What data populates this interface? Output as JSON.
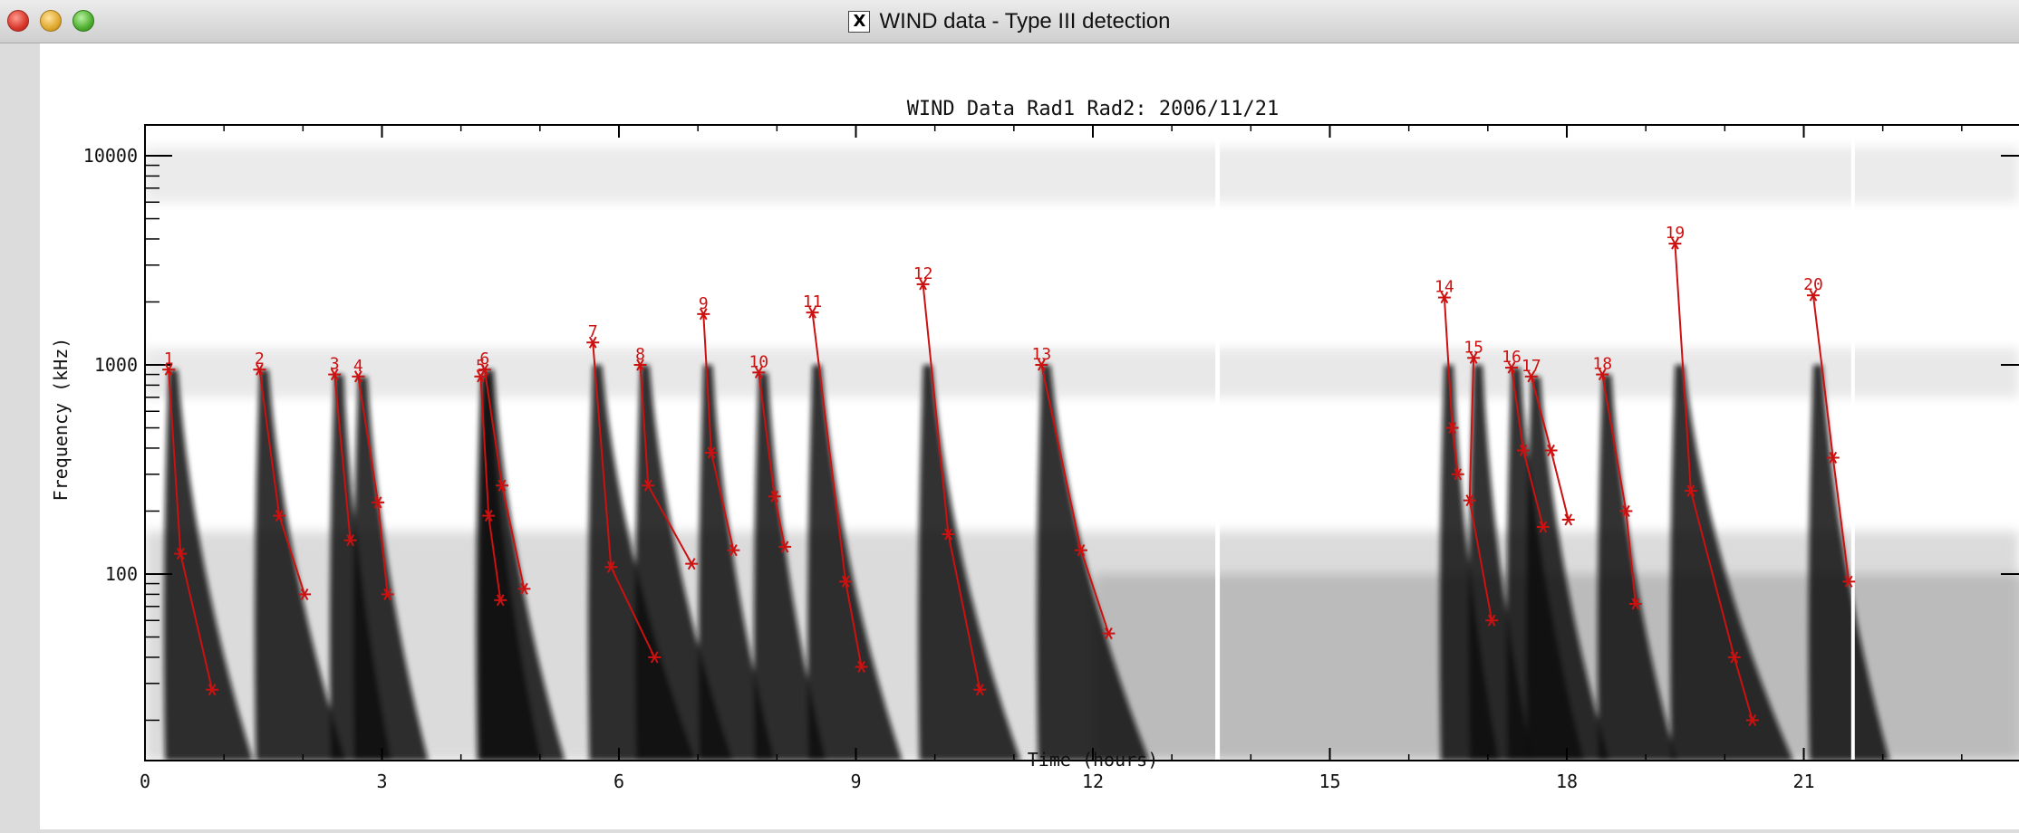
{
  "window": {
    "title": "WIND data - Type III detection",
    "icon": "x11-icon"
  },
  "chart_data": {
    "type": "scatter",
    "title": "WIND Data Rad1 Rad2: 2006/11/21",
    "xlabel": "Time (hours)",
    "ylabel": "Frequency (kHz)",
    "xlim": [
      0,
      24
    ],
    "ylim": [
      20,
      13000
    ],
    "yscale": "log",
    "xticks": [
      "0",
      "3",
      "6",
      "9",
      "12",
      "15",
      "18",
      "21"
    ],
    "yticks": [
      "10000",
      "1000",
      "100"
    ],
    "background": "grayscale dynamic spectrum",
    "marker_color": "#cc1111",
    "series": [
      {
        "label": "1",
        "points": [
          [
            0.3,
            950
          ],
          [
            0.45,
            125
          ],
          [
            0.85,
            28
          ]
        ]
      },
      {
        "label": "2",
        "points": [
          [
            1.45,
            950
          ],
          [
            1.7,
            190
          ],
          [
            2.02,
            80
          ]
        ]
      },
      {
        "label": "3",
        "points": [
          [
            2.4,
            900
          ],
          [
            2.6,
            145
          ]
        ]
      },
      {
        "label": "4",
        "points": [
          [
            2.7,
            880
          ],
          [
            2.95,
            220
          ],
          [
            3.07,
            80
          ]
        ]
      },
      {
        "label": "5",
        "points": [
          [
            4.25,
            880
          ],
          [
            4.35,
            190
          ],
          [
            4.5,
            75
          ]
        ]
      },
      {
        "label": "6",
        "points": [
          [
            4.3,
            950
          ],
          [
            4.52,
            265
          ],
          [
            4.8,
            85
          ]
        ]
      },
      {
        "label": "7",
        "points": [
          [
            5.67,
            1280
          ],
          [
            5.9,
            108
          ],
          [
            6.45,
            40
          ]
        ]
      },
      {
        "label": "8",
        "points": [
          [
            6.27,
            1000
          ],
          [
            6.37,
            265
          ],
          [
            6.92,
            112
          ]
        ]
      },
      {
        "label": "9",
        "points": [
          [
            7.07,
            1750
          ],
          [
            7.17,
            380
          ],
          [
            7.45,
            130
          ]
        ]
      },
      {
        "label": "10",
        "points": [
          [
            7.77,
            920
          ],
          [
            7.97,
            235
          ],
          [
            8.1,
            135
          ]
        ]
      },
      {
        "label": "11",
        "points": [
          [
            8.45,
            1780
          ],
          [
            8.87,
            92
          ],
          [
            9.07,
            36
          ]
        ]
      },
      {
        "label": "12",
        "points": [
          [
            9.85,
            2430
          ],
          [
            10.17,
            155
          ],
          [
            10.57,
            28
          ]
        ]
      },
      {
        "label": "13",
        "points": [
          [
            11.35,
            1000
          ],
          [
            11.85,
            130
          ],
          [
            12.2,
            52
          ]
        ]
      },
      {
        "label": "14",
        "points": [
          [
            16.45,
            2100
          ],
          [
            16.55,
            500
          ],
          [
            16.62,
            300
          ]
        ]
      },
      {
        "label": "15",
        "points": [
          [
            16.82,
            1080
          ],
          [
            16.77,
            225
          ],
          [
            17.05,
            60
          ]
        ]
      },
      {
        "label": "16",
        "points": [
          [
            17.3,
            970
          ],
          [
            17.45,
            390
          ],
          [
            17.7,
            168
          ]
        ]
      },
      {
        "label": "17",
        "points": [
          [
            17.55,
            880
          ],
          [
            17.8,
            390
          ],
          [
            18.02,
            182
          ]
        ]
      },
      {
        "label": "18",
        "points": [
          [
            18.45,
            900
          ],
          [
            18.75,
            200
          ],
          [
            18.87,
            72
          ]
        ]
      },
      {
        "label": "19",
        "points": [
          [
            19.37,
            3800
          ],
          [
            19.57,
            250
          ],
          [
            20.12,
            40
          ],
          [
            20.35,
            20
          ]
        ]
      },
      {
        "label": "20",
        "points": [
          [
            21.12,
            2150
          ],
          [
            21.37,
            360
          ],
          [
            21.57,
            92
          ]
        ]
      }
    ]
  }
}
